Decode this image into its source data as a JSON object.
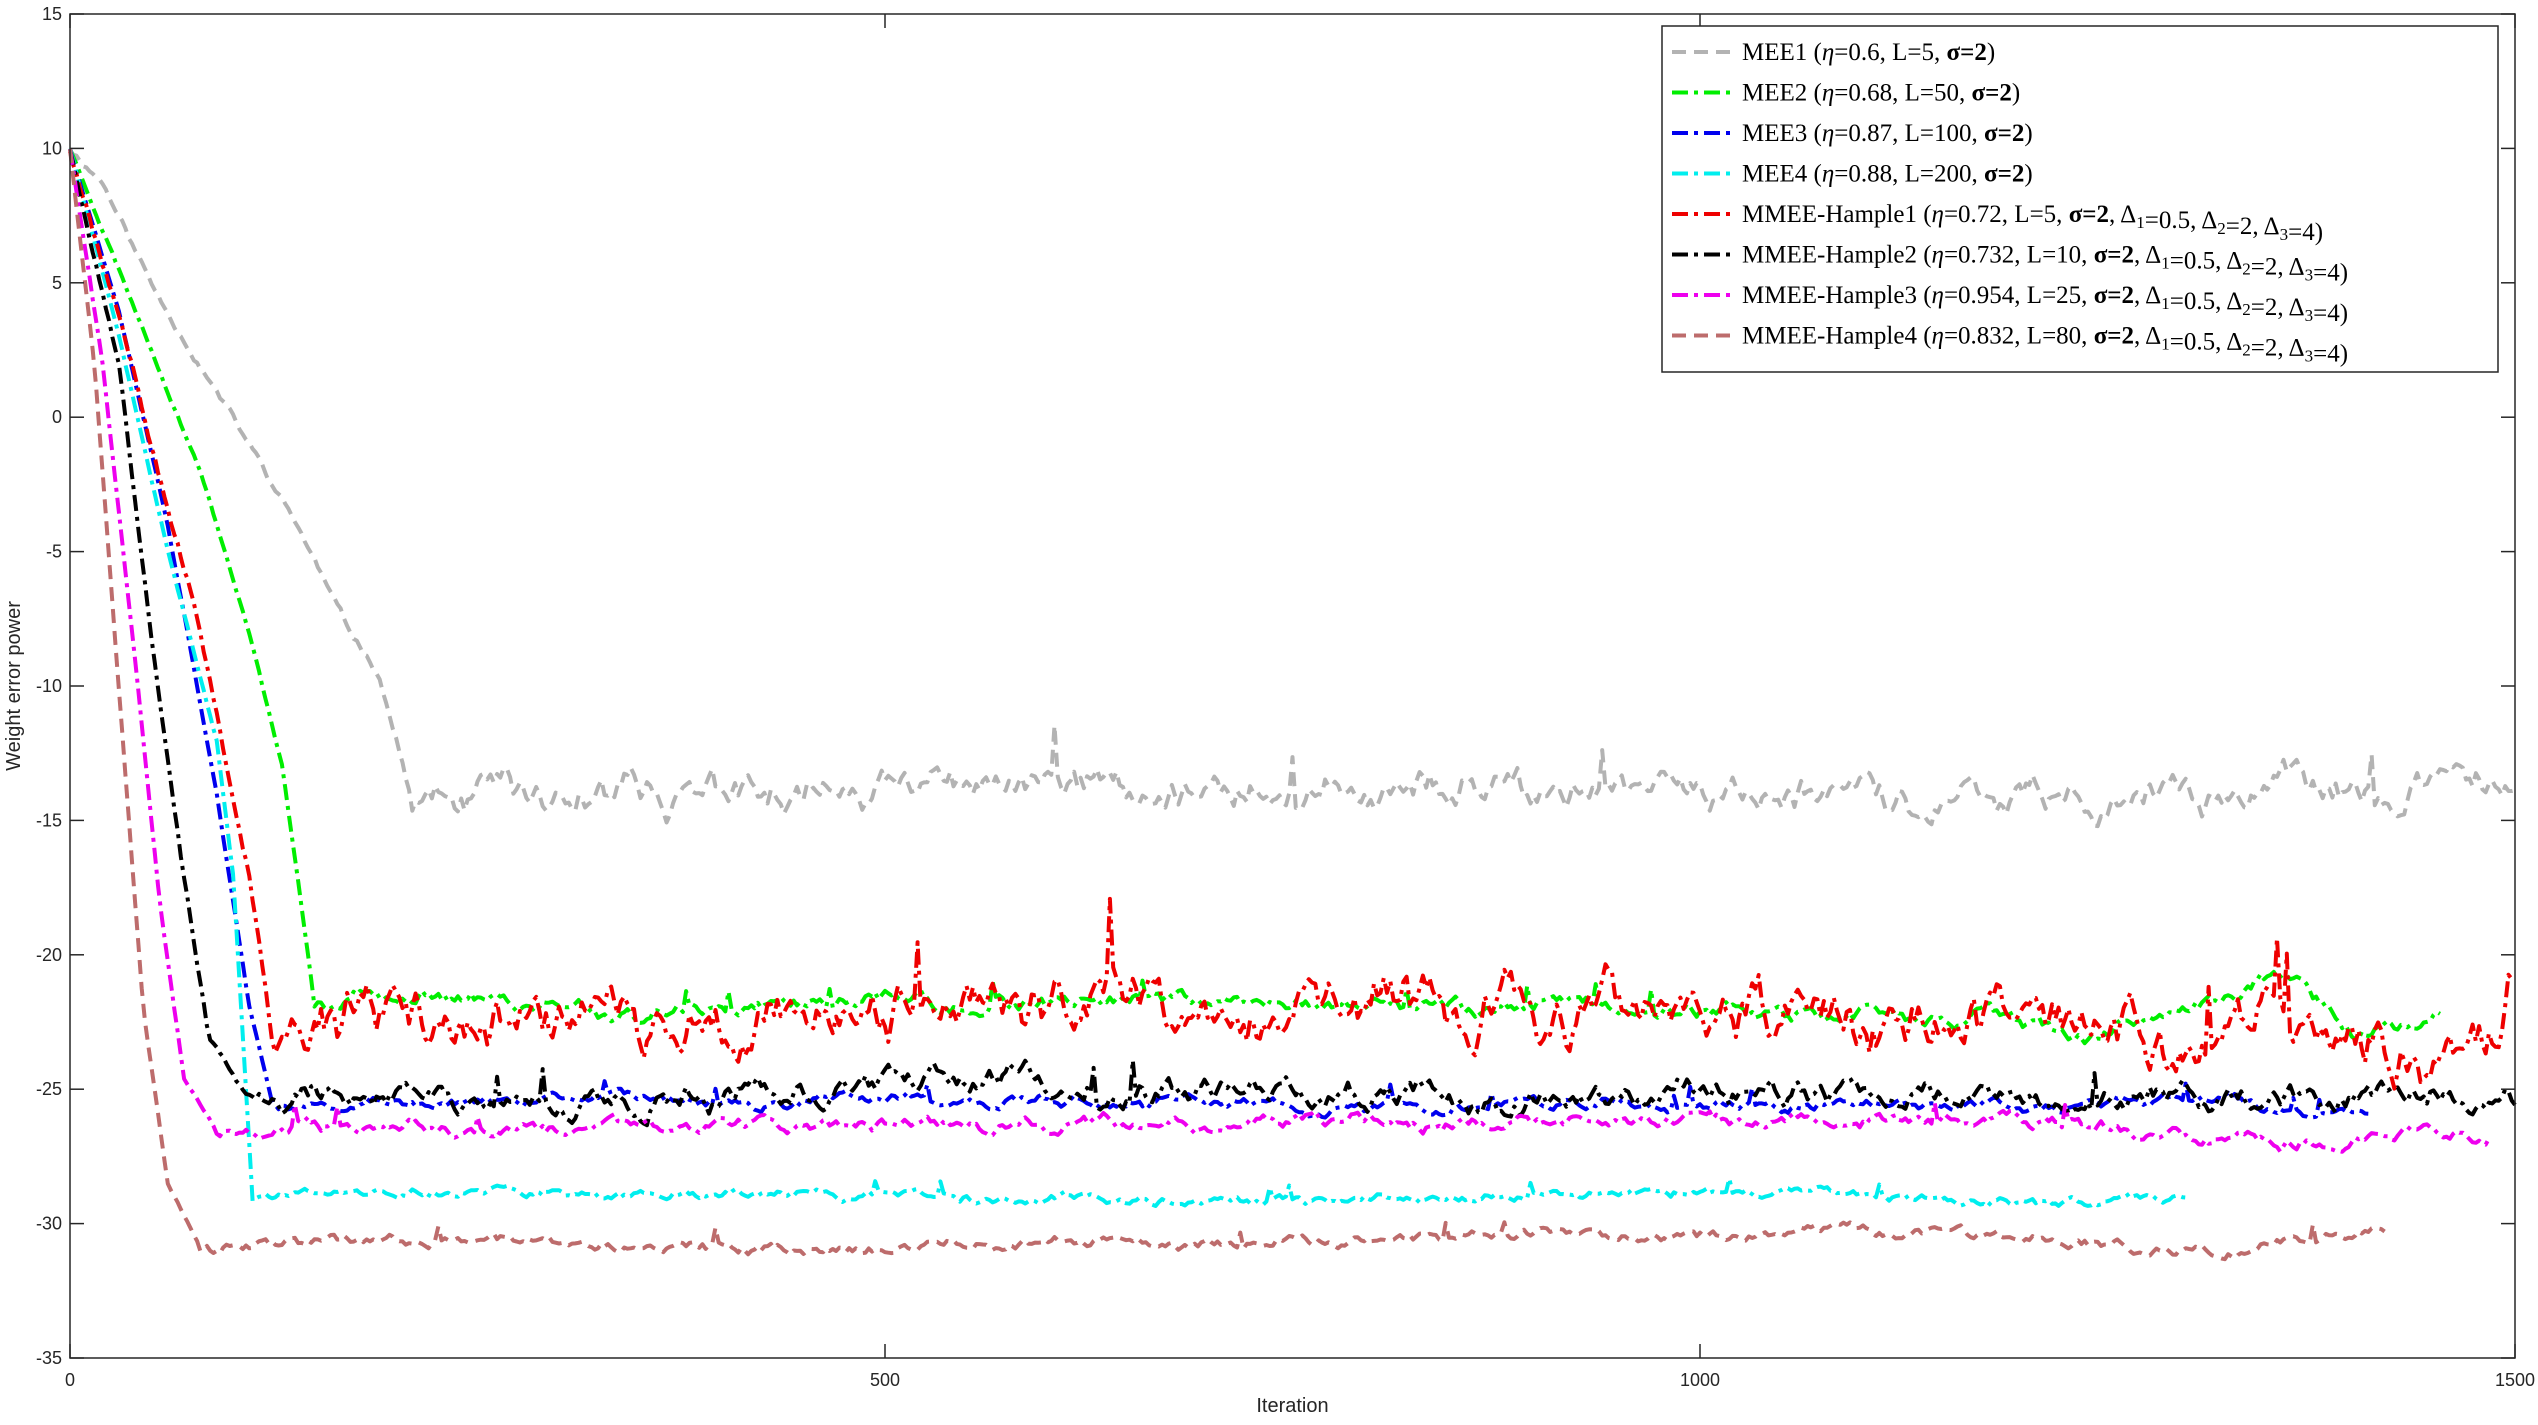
{
  "chart_data": {
    "type": "line",
    "xlabel": "Iteration",
    "ylabel": "Weight error power",
    "xlim": [
      0,
      1500
    ],
    "ylim": [
      -35,
      15
    ],
    "xticks": [
      "0",
      "500",
      "1000",
      "1500"
    ],
    "yticks": [
      "15",
      "10",
      "5",
      "0",
      "-5",
      "-10",
      "-15",
      "-20",
      "-25",
      "-30",
      "-35"
    ],
    "grid": false,
    "legend_position": "top-right",
    "series": [
      {
        "name": "MEE1 (η=0.6, L=5, σ=2)",
        "legend_parts": [
          [
            "MEE1 (",
            ""
          ],
          [
            "η",
            "it"
          ],
          [
            "=0.6, L=5, ",
            ""
          ],
          [
            "σ=2",
            "bd"
          ],
          [
            ")",
            ""
          ]
        ],
        "color": "#b3b3b3",
        "dash": "dashed",
        "end": 1500,
        "transition": [
          0,
          10,
          200,
          -14
        ],
        "knots": [
          [
            0,
            10
          ],
          [
            20,
            8.8
          ],
          [
            50,
            5
          ],
          [
            80,
            2
          ],
          [
            110,
            -1
          ],
          [
            140,
            -4
          ],
          [
            170,
            -7.8
          ],
          [
            190,
            -9.5
          ],
          [
            210,
            -14.2
          ],
          [
            600,
            -13.8
          ],
          [
            1000,
            -13.8
          ],
          [
            1450,
            -14.2
          ],
          [
            1500,
            -13.5
          ]
        ],
        "level": -13.6,
        "noise": 0.75,
        "seed": 11
      },
      {
        "name": "MEE2 (η=0.68, L=50, σ=2)",
        "legend_parts": [
          [
            "MEE2 (",
            ""
          ],
          [
            "η",
            "it"
          ],
          [
            "=0.68, L=50, ",
            ""
          ],
          [
            "σ=2",
            "bd"
          ],
          [
            ")",
            ""
          ]
        ],
        "color": "#00ee00",
        "dash": "dashdot",
        "end": 1455,
        "knots": [
          [
            0,
            10
          ],
          [
            40,
            4
          ],
          [
            80,
            -2
          ],
          [
            110,
            -8
          ],
          [
            130,
            -13
          ],
          [
            150,
            -21.8
          ],
          [
            200,
            -21.5
          ],
          [
            350,
            -22
          ],
          [
            600,
            -21.8
          ],
          [
            1000,
            -22
          ],
          [
            1200,
            -22.5
          ],
          [
            1250,
            -22.8
          ],
          [
            1360,
            -20.8
          ],
          [
            1400,
            -22.5
          ],
          [
            1455,
            -22
          ]
        ],
        "level": -21.9,
        "noise": 0.35,
        "seed": 23
      },
      {
        "name": "MEE3 (η=0.87, L=100, σ=2)",
        "legend_parts": [
          [
            "MEE3 (",
            ""
          ],
          [
            "η",
            "it"
          ],
          [
            "=0.87, L=100, ",
            ""
          ],
          [
            "σ=2",
            "bd"
          ],
          [
            ")",
            ""
          ]
        ],
        "color": "#0000ee",
        "dash": "dashdot",
        "end": 1410,
        "knots": [
          [
            0,
            10
          ],
          [
            30,
            4
          ],
          [
            60,
            -4
          ],
          [
            90,
            -14
          ],
          [
            110,
            -22
          ],
          [
            125,
            -25.8
          ],
          [
            200,
            -25.5
          ],
          [
            500,
            -25.4
          ],
          [
            800,
            -25.6
          ],
          [
            1000,
            -25.5
          ],
          [
            1200,
            -25.8
          ],
          [
            1300,
            -25.4
          ],
          [
            1410,
            -26
          ]
        ],
        "level": -25.5,
        "noise": 0.25,
        "seed": 37
      },
      {
        "name": "MEE4 (η=0.88, L=200, σ=2)",
        "legend_parts": [
          [
            "MEE4 (",
            ""
          ],
          [
            "η",
            "it"
          ],
          [
            "=0.88, L=200, ",
            ""
          ],
          [
            "σ=2",
            "bd"
          ],
          [
            ")",
            ""
          ]
        ],
        "color": "#00eeee",
        "dash": "dashdot",
        "end": 1300,
        "knots": [
          [
            0,
            10
          ],
          [
            30,
            3
          ],
          [
            60,
            -5
          ],
          [
            90,
            -12
          ],
          [
            100,
            -17
          ],
          [
            108,
            -25
          ],
          [
            112,
            -29
          ],
          [
            200,
            -28.8
          ],
          [
            400,
            -28.9
          ],
          [
            700,
            -29.2
          ],
          [
            1000,
            -28.8
          ],
          [
            1200,
            -29.2
          ],
          [
            1300,
            -29
          ]
        ],
        "level": -29,
        "noise": 0.2,
        "seed": 41
      },
      {
        "name": "MMEE-Hample1 (η=0.72,  L=5, σ=2, Δ1=0.5, Δ2=2, Δ3=4)",
        "legend_parts": [
          [
            "MMEE-Hample1 (",
            ""
          ],
          [
            "η",
            "it"
          ],
          [
            "=0.72,  L=5, ",
            ""
          ],
          [
            "σ=2",
            "bd"
          ],
          [
            ", Δ",
            ""
          ],
          [
            "1",
            "sub"
          ],
          [
            "=0.5, Δ",
            ""
          ],
          [
            "2",
            "sub"
          ],
          [
            "=2, Δ",
            ""
          ],
          [
            "3",
            "sub"
          ],
          [
            "=4)",
            ""
          ]
        ],
        "color": "#ee0000",
        "dash": "dashdot",
        "end": 1500,
        "knots": [
          [
            0,
            10
          ],
          [
            40,
            2
          ],
          [
            80,
            -8
          ],
          [
            110,
            -17
          ],
          [
            125,
            -23.5
          ],
          [
            200,
            -22
          ],
          [
            500,
            -21.8
          ],
          [
            800,
            -22
          ],
          [
            1000,
            -22
          ],
          [
            1200,
            -22.5
          ],
          [
            1300,
            -23.5
          ],
          [
            1400,
            -22.5
          ],
          [
            1480,
            -24
          ],
          [
            1500,
            -20.5
          ]
        ],
        "level": -22,
        "noise": 1.2,
        "seed": 53
      },
      {
        "name": "MMEE-Hample2 (η=0.732, L=10, σ=2, Δ1=0.5, Δ2=2, Δ3=4)",
        "legend_parts": [
          [
            "MMEE-Hample2 (",
            ""
          ],
          [
            "η",
            "it"
          ],
          [
            "=0.732, L=10, ",
            ""
          ],
          [
            "σ=2",
            "bd"
          ],
          [
            ", Δ",
            ""
          ],
          [
            "1",
            "sub"
          ],
          [
            "=0.5, Δ",
            ""
          ],
          [
            "2",
            "sub"
          ],
          [
            "=2, Δ",
            ""
          ],
          [
            "3",
            "sub"
          ],
          [
            "=4)",
            ""
          ]
        ],
        "color": "#000000",
        "dash": "dashdot",
        "end": 1500,
        "knots": [
          [
            0,
            10
          ],
          [
            30,
            2
          ],
          [
            50,
            -8
          ],
          [
            70,
            -17
          ],
          [
            85,
            -23
          ],
          [
            110,
            -25.5
          ],
          [
            200,
            -25.3
          ],
          [
            500,
            -25
          ],
          [
            800,
            -25
          ],
          [
            1000,
            -25
          ],
          [
            1200,
            -25.3
          ],
          [
            1400,
            -25.2
          ],
          [
            1500,
            -25.4
          ]
        ],
        "level": -25.1,
        "noise": 0.55,
        "seed": 67
      },
      {
        "name": "MMEE-Hample3 (η=0.954, L=25, σ=2, Δ1=0.5, Δ2=2, Δ3=4)",
        "legend_parts": [
          [
            "MMEE-Hample3 (",
            ""
          ],
          [
            "η",
            "it"
          ],
          [
            "=0.954, L=25, ",
            ""
          ],
          [
            "σ=2",
            "bd"
          ],
          [
            ", Δ",
            ""
          ],
          [
            "1",
            "sub"
          ],
          [
            "=0.5, Δ",
            ""
          ],
          [
            "2",
            "sub"
          ],
          [
            "=2, Δ",
            ""
          ],
          [
            "3",
            "sub"
          ],
          [
            "=4)",
            ""
          ]
        ],
        "color": "#ee00ee",
        "dash": "dashdot",
        "end": 1485,
        "knots": [
          [
            0,
            10
          ],
          [
            20,
            2
          ],
          [
            40,
            -9
          ],
          [
            55,
            -18
          ],
          [
            70,
            -24.5
          ],
          [
            90,
            -26.5
          ],
          [
            200,
            -26.4
          ],
          [
            500,
            -26.4
          ],
          [
            800,
            -26.3
          ],
          [
            1000,
            -26.3
          ],
          [
            1200,
            -26.2
          ],
          [
            1380,
            -27
          ],
          [
            1485,
            -26.5
          ]
        ],
        "level": -26.4,
        "noise": 0.3,
        "seed": 79
      },
      {
        "name": "MMEE-Hample4 (η=0.832, L=80, σ=2, Δ1=0.5, Δ2=2, Δ3=4)",
        "legend_parts": [
          [
            "MMEE-Hample4 (",
            ""
          ],
          [
            "η",
            "it"
          ],
          [
            "=0.832, L=80, ",
            ""
          ],
          [
            "σ=2",
            "bd"
          ],
          [
            ", Δ",
            ""
          ],
          [
            "1",
            "sub"
          ],
          [
            "=0.5, Δ",
            ""
          ],
          [
            "2",
            "sub"
          ],
          [
            "=2, Δ",
            ""
          ],
          [
            "3",
            "sub"
          ],
          [
            "=4)",
            ""
          ]
        ],
        "color": "#bd6c6c",
        "dash": "dashed",
        "end": 1420,
        "knots": [
          [
            0,
            10
          ],
          [
            15,
            2
          ],
          [
            30,
            -10
          ],
          [
            45,
            -22
          ],
          [
            60,
            -28.5
          ],
          [
            80,
            -30.8
          ],
          [
            200,
            -30.8
          ],
          [
            500,
            -30.8
          ],
          [
            800,
            -30.7
          ],
          [
            1000,
            -30.5
          ],
          [
            1150,
            -30.4
          ],
          [
            1300,
            -31
          ],
          [
            1420,
            -30.3
          ]
        ],
        "level": -30.8,
        "noise": 0.25,
        "seed": 97
      }
    ]
  }
}
